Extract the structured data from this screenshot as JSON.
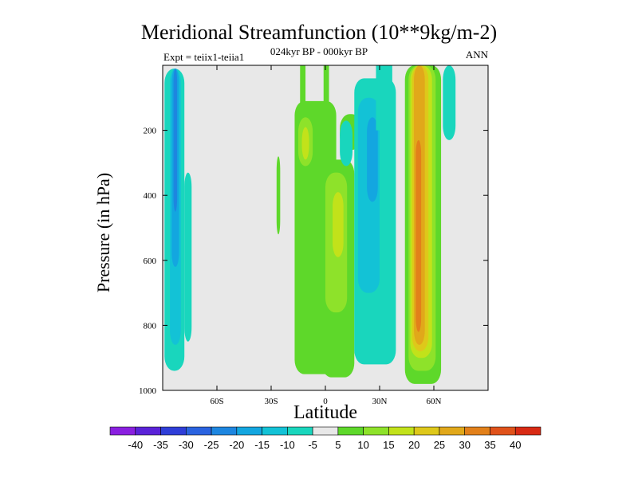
{
  "chart_data": {
    "type": "heatmap",
    "title": "Meridional Streamfunction (10**9kg/m-2)",
    "subtitle_left": "Expt = teiix1-teiia1",
    "subtitle_center": "024kyr BP - 000kyr BP",
    "subtitle_right": "ANN",
    "xlabel": "Latitude",
    "ylabel": "Pressure (in hPa)",
    "xlim": [
      -90,
      90
    ],
    "ylim": [
      1000,
      0
    ],
    "x_ticks": [
      {
        "value": -60,
        "label": "60S"
      },
      {
        "value": -30,
        "label": "30S"
      },
      {
        "value": 0,
        "label": "0"
      },
      {
        "value": 30,
        "label": "30N"
      },
      {
        "value": 60,
        "label": "60N"
      }
    ],
    "y_ticks": [
      {
        "value": 200,
        "label": "200"
      },
      {
        "value": 400,
        "label": "400"
      },
      {
        "value": 600,
        "label": "600"
      },
      {
        "value": 800,
        "label": "800"
      },
      {
        "value": 1000,
        "label": "1000"
      }
    ],
    "colorbar": {
      "labels": [
        "-40",
        "-35",
        "-30",
        "-25",
        "-20",
        "-15",
        "-10",
        "-5",
        "5",
        "10",
        "15",
        "20",
        "25",
        "30",
        "35",
        "40"
      ],
      "colors": [
        "#8a1fe0",
        "#5a22d8",
        "#2f3ed8",
        "#2a63e0",
        "#1d86e0",
        "#13a6e0",
        "#13c2d6",
        "#19d6bd",
        "#e8e8e8",
        "#5ed82a",
        "#8ee22a",
        "#c2e21a",
        "#dec81a",
        "#e1a81a",
        "#e2801a",
        "#e0521a",
        "#d82a14"
      ]
    },
    "field": {
      "background": "#e8e8e8",
      "regions": [
        {
          "name": "sh-polar-cell",
          "color": "#19d6bd",
          "lat": [
            -89,
            -78
          ],
          "p": [
            10,
            940
          ],
          "rounded": true
        },
        {
          "name": "sh-polar-cell-edge",
          "color": "#19d6bd",
          "lat": [
            -78,
            -74
          ],
          "p": [
            330,
            850
          ],
          "rounded": true
        },
        {
          "name": "sh-polar-core",
          "color": "#13c2d6",
          "lat": [
            -86,
            -80
          ],
          "p": [
            10,
            860
          ],
          "rounded": true
        },
        {
          "name": "sh-polar-inner",
          "color": "#13a6e0",
          "lat": [
            -85,
            -81
          ],
          "p": [
            10,
            620
          ],
          "rounded": true
        },
        {
          "name": "sh-polar-peak",
          "color": "#1d86e0",
          "lat": [
            -84,
            -82
          ],
          "p": [
            10,
            450
          ],
          "rounded": true
        },
        {
          "name": "sh-midlat-speck",
          "color": "#5ed82a",
          "lat": [
            -27,
            -25
          ],
          "p": [
            280,
            520
          ],
          "rounded": true
        },
        {
          "name": "sh-subtropic-cell",
          "color": "#5ed82a",
          "lat": [
            -17,
            6
          ],
          "p": [
            110,
            950
          ],
          "rounded": true
        },
        {
          "name": "sh-subtropic-col",
          "color": "#5ed82a",
          "lat": [
            -14,
            -11
          ],
          "p": [
            0,
            200
          ],
          "rounded": false
        },
        {
          "name": "eq-cell",
          "color": "#5ed82a",
          "lat": [
            -2,
            16
          ],
          "p": [
            290,
            960
          ],
          "rounded": true
        },
        {
          "name": "eq-col",
          "color": "#5ed82a",
          "lat": [
            -1,
            2
          ],
          "p": [
            0,
            120
          ],
          "rounded": false
        },
        {
          "name": "upper-arm",
          "color": "#5ed82a",
          "lat": [
            8,
            20
          ],
          "p": [
            150,
            260
          ],
          "rounded": true
        },
        {
          "name": "sh-subtropic-mid",
          "color": "#8ee22a",
          "lat": [
            -15,
            -7
          ],
          "p": [
            160,
            310
          ],
          "rounded": true
        },
        {
          "name": "sh-subtropic-core",
          "color": "#c2e21a",
          "lat": [
            -13,
            -9
          ],
          "p": [
            190,
            290
          ],
          "rounded": true
        },
        {
          "name": "eq-mid",
          "color": "#8ee22a",
          "lat": [
            0,
            12
          ],
          "p": [
            330,
            760
          ],
          "rounded": true
        },
        {
          "name": "eq-core",
          "color": "#c2e21a",
          "lat": [
            4,
            10
          ],
          "p": [
            390,
            590
          ],
          "rounded": true
        },
        {
          "name": "tropic-neg",
          "color": "#19d6bd",
          "lat": [
            8,
            15
          ],
          "p": [
            170,
            310
          ],
          "rounded": true
        },
        {
          "name": "nh-neg-cell",
          "color": "#19d6bd",
          "lat": [
            16,
            39
          ],
          "p": [
            40,
            920
          ],
          "rounded": true
        },
        {
          "name": "nh-neg-core",
          "color": "#13c2d6",
          "lat": [
            18,
            30
          ],
          "p": [
            100,
            700
          ],
          "rounded": true
        },
        {
          "name": "nh-neg-inner",
          "color": "#13a6e0",
          "lat": [
            23,
            29
          ],
          "p": [
            160,
            420
          ],
          "rounded": true
        },
        {
          "name": "nh-neg-top",
          "color": "#19d6bd",
          "lat": [
            28,
            37
          ],
          "p": [
            0,
            200
          ],
          "rounded": false
        },
        {
          "name": "nh-ferrel",
          "color": "#5ed82a",
          "lat": [
            44,
            64
          ],
          "p": [
            0,
            980
          ],
          "rounded": true
        },
        {
          "name": "nh-ferrel-2",
          "color": "#8ee22a",
          "lat": [
            46,
            61
          ],
          "p": [
            0,
            940
          ],
          "rounded": true
        },
        {
          "name": "nh-ferrel-3",
          "color": "#c2e21a",
          "lat": [
            47,
            59
          ],
          "p": [
            0,
            900
          ],
          "rounded": true
        },
        {
          "name": "nh-ferrel-4",
          "color": "#dec81a",
          "lat": [
            48,
            57
          ],
          "p": [
            0,
            880
          ],
          "rounded": true
        },
        {
          "name": "nh-ferrel-5",
          "color": "#e1a81a",
          "lat": [
            49,
            55
          ],
          "p": [
            0,
            860
          ],
          "rounded": true
        },
        {
          "name": "nh-ferrel-6",
          "color": "#e2801a",
          "lat": [
            50,
            53
          ],
          "p": [
            230,
            820
          ],
          "rounded": true
        },
        {
          "name": "nh-polar-neg",
          "color": "#19d6bd",
          "lat": [
            65,
            72
          ],
          "p": [
            0,
            230
          ],
          "rounded": true
        }
      ]
    }
  }
}
